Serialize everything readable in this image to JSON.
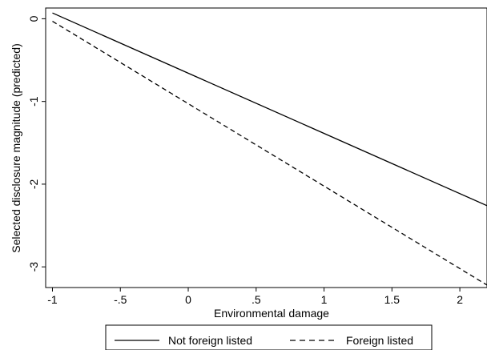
{
  "chart_data": {
    "type": "line",
    "title": "",
    "xlabel": "Environmental damage",
    "ylabel": "Selected disclosure magnitude (predicted)",
    "xlim": [
      -1.05,
      2.2
    ],
    "ylim": [
      -3.25,
      0.13
    ],
    "x_ticks": [
      -1,
      -0.5,
      0,
      0.5,
      1,
      1.5,
      2
    ],
    "x_tick_labels": [
      "-1",
      "-.5",
      "0",
      ".5",
      "1",
      "1.5",
      "2"
    ],
    "y_ticks": [
      0,
      -1,
      -2,
      -3
    ],
    "y_tick_labels": [
      "0",
      "-1",
      "-2",
      "-3"
    ],
    "grid": false,
    "legend_position": "bottom",
    "series": [
      {
        "name": "Not foreign listed",
        "style": "solid",
        "color": "#000000",
        "x": [
          -1,
          2.2
        ],
        "y": [
          0.07,
          -2.26
        ]
      },
      {
        "name": "Foreign listed",
        "style": "dashed",
        "color": "#000000",
        "x": [
          -1,
          2.2
        ],
        "y": [
          -0.03,
          -3.22
        ]
      }
    ]
  }
}
